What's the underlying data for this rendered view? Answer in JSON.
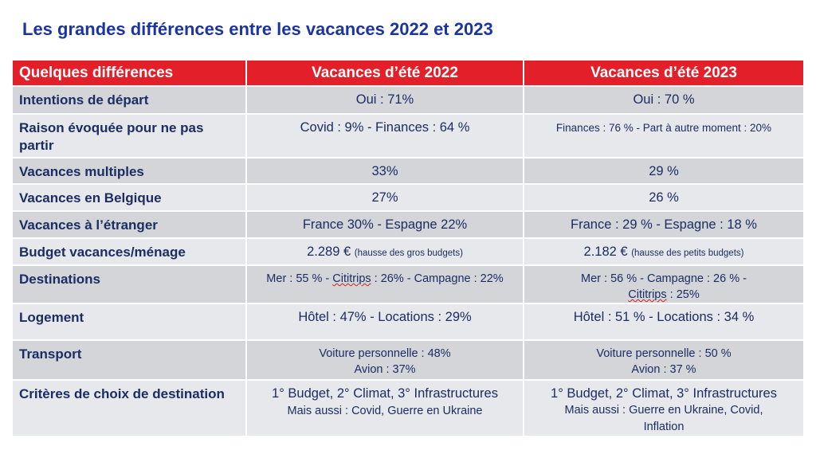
{
  "title": "Les grandes différences entre les vacances 2022 et 2023",
  "colors": {
    "header_bg": "#e3202a",
    "title": "#1c34a0",
    "text": "#1b2d63",
    "row_dark": "#d3d5d9",
    "row_light": "#e7e8eb"
  },
  "headers": [
    "Quelques différences",
    "Vacances d’été 2022",
    "Vacances d’été 2023"
  ],
  "rows": [
    {
      "label": "Intentions de départ",
      "v2022": "Oui : 71%",
      "v2023": "Oui : 70 %"
    },
    {
      "label": "Raison évoquée pour ne pas partir",
      "v2022": "Covid : 9% - Finances : 64 %",
      "v2023": "Finances : 76 % - Part à autre moment : 20%"
    },
    {
      "label": "Vacances multiples",
      "v2022": "33%",
      "v2023": "29 %"
    },
    {
      "label": "Vacances en Belgique",
      "v2022": "27%",
      "v2023": "26 %"
    },
    {
      "label": "Vacances à l’étranger",
      "v2022": "France 30% - Espagne 22%",
      "v2023": "France : 29 % - Espagne : 18 %"
    },
    {
      "label": "Budget vacances/ménage",
      "v2022": "2.289 €",
      "v2022_note": "(hausse des gros budgets)",
      "v2023": "2.182 €",
      "v2023_note": "(hausse des petits budgets)"
    },
    {
      "label": "Destinations",
      "v2022_a": "Mer : 55 % - ",
      "v2022_b": "Cititrips",
      "v2022_c": " : 26% - Campagne : 22%",
      "v2023_a": "Mer : 56 % - Campagne : 26 % - ",
      "v2023_b": "Cititrips",
      "v2023_c": " : 25%"
    },
    {
      "label": "Logement",
      "v2022": "Hôtel : 47% - Locations : 29%",
      "v2023": "Hôtel : 51 % - Locations : 34 %"
    },
    {
      "label": "Transport",
      "v2022_l1": "Voiture personnelle : 48%",
      "v2022_l2": "Avion : 37%",
      "v2023_l1": "Voiture personnelle : 50 %",
      "v2023_l2": "Avion : 37 %"
    },
    {
      "label": "Critères de choix de destination",
      "v2022_l1": "1° Budget, 2° Climat, 3° Infrastructures",
      "v2022_l2": "Mais aussi : Covid, Guerre en Ukraine",
      "v2023_l1": "1° Budget, 2° Climat, 3° Infrastructures",
      "v2023_l2": "Mais aussi : Guerre en Ukraine, Covid, Inflation"
    }
  ]
}
